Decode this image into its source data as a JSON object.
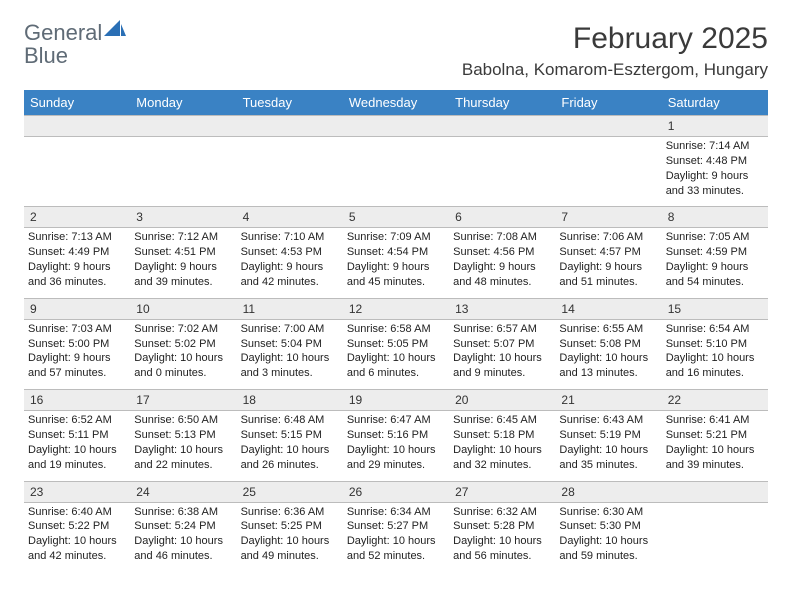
{
  "logo": {
    "word1": "General",
    "word2": "Blue"
  },
  "header": {
    "month_title": "February 2025",
    "location": "Babolna, Komarom-Esztergom, Hungary"
  },
  "colors": {
    "header_bar": "#3a82c4",
    "daynum_bg": "#ededed",
    "rule": "#bcbcbc",
    "logo_gray": "#5f6b76",
    "logo_blue": "#2a6fb5"
  },
  "day_names": [
    "Sunday",
    "Monday",
    "Tuesday",
    "Wednesday",
    "Thursday",
    "Friday",
    "Saturday"
  ],
  "weeks": [
    {
      "nums": [
        "",
        "",
        "",
        "",
        "",
        "",
        "1"
      ],
      "cells": [
        null,
        null,
        null,
        null,
        null,
        null,
        {
          "sunrise": "7:14 AM",
          "sunset": "4:48 PM",
          "dl1": "Daylight: 9 hours",
          "dl2": "and 33 minutes."
        }
      ]
    },
    {
      "nums": [
        "2",
        "3",
        "4",
        "5",
        "6",
        "7",
        "8"
      ],
      "cells": [
        {
          "sunrise": "7:13 AM",
          "sunset": "4:49 PM",
          "dl1": "Daylight: 9 hours",
          "dl2": "and 36 minutes."
        },
        {
          "sunrise": "7:12 AM",
          "sunset": "4:51 PM",
          "dl1": "Daylight: 9 hours",
          "dl2": "and 39 minutes."
        },
        {
          "sunrise": "7:10 AM",
          "sunset": "4:53 PM",
          "dl1": "Daylight: 9 hours",
          "dl2": "and 42 minutes."
        },
        {
          "sunrise": "7:09 AM",
          "sunset": "4:54 PM",
          "dl1": "Daylight: 9 hours",
          "dl2": "and 45 minutes."
        },
        {
          "sunrise": "7:08 AM",
          "sunset": "4:56 PM",
          "dl1": "Daylight: 9 hours",
          "dl2": "and 48 minutes."
        },
        {
          "sunrise": "7:06 AM",
          "sunset": "4:57 PM",
          "dl1": "Daylight: 9 hours",
          "dl2": "and 51 minutes."
        },
        {
          "sunrise": "7:05 AM",
          "sunset": "4:59 PM",
          "dl1": "Daylight: 9 hours",
          "dl2": "and 54 minutes."
        }
      ]
    },
    {
      "nums": [
        "9",
        "10",
        "11",
        "12",
        "13",
        "14",
        "15"
      ],
      "cells": [
        {
          "sunrise": "7:03 AM",
          "sunset": "5:00 PM",
          "dl1": "Daylight: 9 hours",
          "dl2": "and 57 minutes."
        },
        {
          "sunrise": "7:02 AM",
          "sunset": "5:02 PM",
          "dl1": "Daylight: 10 hours",
          "dl2": "and 0 minutes."
        },
        {
          "sunrise": "7:00 AM",
          "sunset": "5:04 PM",
          "dl1": "Daylight: 10 hours",
          "dl2": "and 3 minutes."
        },
        {
          "sunrise": "6:58 AM",
          "sunset": "5:05 PM",
          "dl1": "Daylight: 10 hours",
          "dl2": "and 6 minutes."
        },
        {
          "sunrise": "6:57 AM",
          "sunset": "5:07 PM",
          "dl1": "Daylight: 10 hours",
          "dl2": "and 9 minutes."
        },
        {
          "sunrise": "6:55 AM",
          "sunset": "5:08 PM",
          "dl1": "Daylight: 10 hours",
          "dl2": "and 13 minutes."
        },
        {
          "sunrise": "6:54 AM",
          "sunset": "5:10 PM",
          "dl1": "Daylight: 10 hours",
          "dl2": "and 16 minutes."
        }
      ]
    },
    {
      "nums": [
        "16",
        "17",
        "18",
        "19",
        "20",
        "21",
        "22"
      ],
      "cells": [
        {
          "sunrise": "6:52 AM",
          "sunset": "5:11 PM",
          "dl1": "Daylight: 10 hours",
          "dl2": "and 19 minutes."
        },
        {
          "sunrise": "6:50 AM",
          "sunset": "5:13 PM",
          "dl1": "Daylight: 10 hours",
          "dl2": "and 22 minutes."
        },
        {
          "sunrise": "6:48 AM",
          "sunset": "5:15 PM",
          "dl1": "Daylight: 10 hours",
          "dl2": "and 26 minutes."
        },
        {
          "sunrise": "6:47 AM",
          "sunset": "5:16 PM",
          "dl1": "Daylight: 10 hours",
          "dl2": "and 29 minutes."
        },
        {
          "sunrise": "6:45 AM",
          "sunset": "5:18 PM",
          "dl1": "Daylight: 10 hours",
          "dl2": "and 32 minutes."
        },
        {
          "sunrise": "6:43 AM",
          "sunset": "5:19 PM",
          "dl1": "Daylight: 10 hours",
          "dl2": "and 35 minutes."
        },
        {
          "sunrise": "6:41 AM",
          "sunset": "5:21 PM",
          "dl1": "Daylight: 10 hours",
          "dl2": "and 39 minutes."
        }
      ]
    },
    {
      "nums": [
        "23",
        "24",
        "25",
        "26",
        "27",
        "28",
        ""
      ],
      "cells": [
        {
          "sunrise": "6:40 AM",
          "sunset": "5:22 PM",
          "dl1": "Daylight: 10 hours",
          "dl2": "and 42 minutes."
        },
        {
          "sunrise": "6:38 AM",
          "sunset": "5:24 PM",
          "dl1": "Daylight: 10 hours",
          "dl2": "and 46 minutes."
        },
        {
          "sunrise": "6:36 AM",
          "sunset": "5:25 PM",
          "dl1": "Daylight: 10 hours",
          "dl2": "and 49 minutes."
        },
        {
          "sunrise": "6:34 AM",
          "sunset": "5:27 PM",
          "dl1": "Daylight: 10 hours",
          "dl2": "and 52 minutes."
        },
        {
          "sunrise": "6:32 AM",
          "sunset": "5:28 PM",
          "dl1": "Daylight: 10 hours",
          "dl2": "and 56 minutes."
        },
        {
          "sunrise": "6:30 AM",
          "sunset": "5:30 PM",
          "dl1": "Daylight: 10 hours",
          "dl2": "and 59 minutes."
        },
        null
      ]
    }
  ],
  "labels": {
    "sunrise_prefix": "Sunrise: ",
    "sunset_prefix": "Sunset: "
  }
}
